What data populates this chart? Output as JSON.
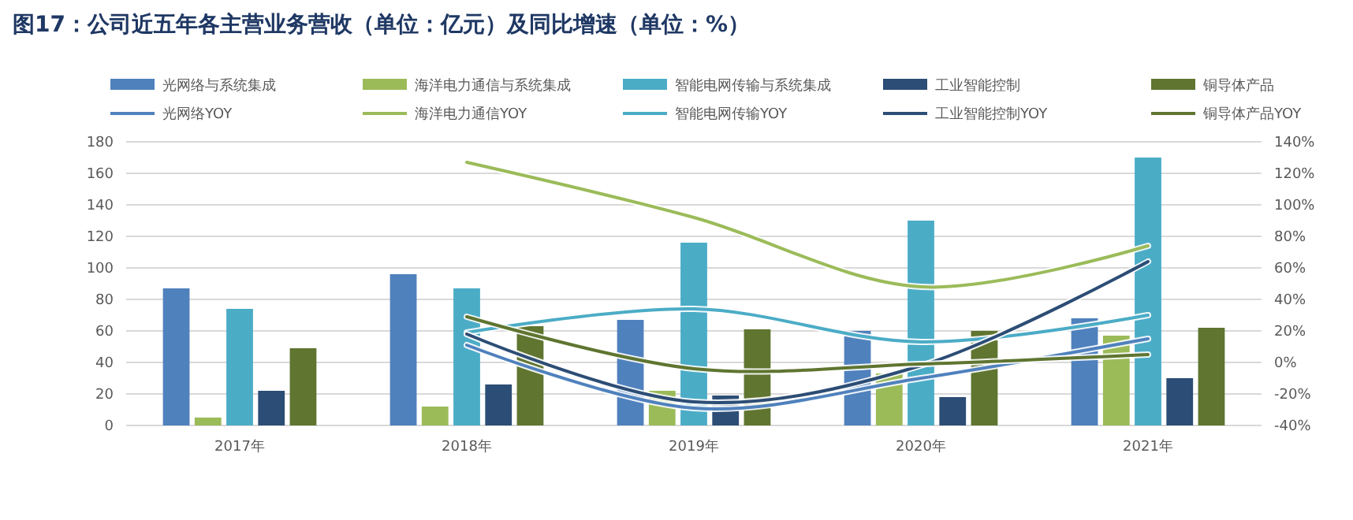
{
  "chart_data": {
    "type": "bar",
    "title": "图17：公司近五年各主营业务营收（单位：亿元）及同比增速（单位：%）",
    "categories": [
      "2017年",
      "2018年",
      "2019年",
      "2020年",
      "2021年"
    ],
    "series": [
      {
        "name": "光网络与系统集成",
        "color": "#4f81bd",
        "values": [
          87,
          96,
          67,
          60,
          68
        ]
      },
      {
        "name": "海洋电力通信与系统集成",
        "color": "#9bbb59",
        "values": [
          5,
          12,
          22,
          33,
          57
        ]
      },
      {
        "name": "智能电网传输与系统集成",
        "color": "#4bacc6",
        "values": [
          74,
          87,
          116,
          130,
          170
        ]
      },
      {
        "name": "工业智能控制",
        "color": "#2c4d75",
        "values": [
          22,
          26,
          19,
          18,
          30
        ]
      },
      {
        "name": "铜导体产品",
        "color": "#5f7530",
        "values": [
          49,
          63,
          61,
          60,
          62
        ]
      },
      {
        "name": "光网络YOY",
        "type": "line",
        "axis": "y2",
        "color": "#4f81bd",
        "values": [
          null,
          11,
          -29,
          -10,
          15
        ]
      },
      {
        "name": "海洋电力通信YOY",
        "type": "line",
        "axis": "y2",
        "color": "#9bbb59",
        "values": [
          null,
          127,
          92,
          48,
          74
        ]
      },
      {
        "name": "智能电网传输YOY",
        "type": "line",
        "axis": "y2",
        "color": "#4bacc6",
        "values": [
          null,
          19,
          34,
          13,
          30
        ]
      },
      {
        "name": "工业智能控制YOY",
        "type": "line",
        "axis": "y2",
        "color": "#2c4d75",
        "values": [
          null,
          18,
          -25,
          -2,
          64
        ]
      },
      {
        "name": "铜导体产品YOY",
        "type": "line",
        "axis": "y2",
        "color": "#5f7530",
        "values": [
          null,
          29,
          -4,
          -1,
          5
        ]
      }
    ],
    "ylim": [
      0,
      180
    ],
    "yticks": [
      0,
      20,
      40,
      60,
      80,
      100,
      120,
      140,
      160,
      180
    ],
    "y2lim": [
      -40,
      140
    ],
    "y2ticks": [
      {
        "value": -40,
        "label": "-40%"
      },
      {
        "value": -20,
        "label": "-20%"
      },
      {
        "value": 0,
        "label": "0%"
      },
      {
        "value": 20,
        "label": "20%"
      },
      {
        "value": 40,
        "label": "40%"
      },
      {
        "value": 60,
        "label": "60%"
      },
      {
        "value": 80,
        "label": "80%"
      },
      {
        "value": 100,
        "label": "100%"
      },
      {
        "value": 120,
        "label": "120%"
      },
      {
        "value": 140,
        "label": "140%"
      }
    ],
    "grid": "y",
    "legend": "top",
    "marker": "none",
    "line_style": "solid"
  }
}
